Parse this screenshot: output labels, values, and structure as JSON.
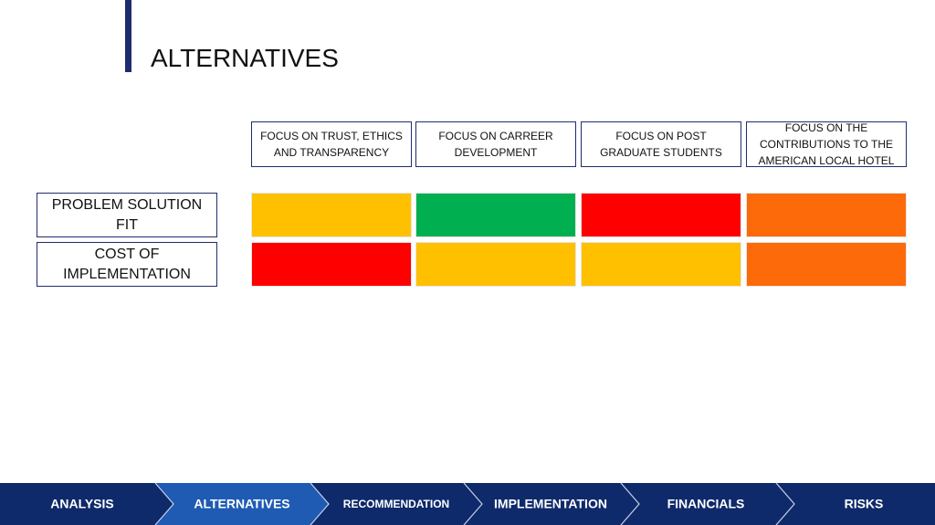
{
  "title": "ALTERNATIVES",
  "matrix": {
    "columns": [
      "FOCUS ON TRUST, ETHICS AND TRANSPARENCY",
      "FOCUS ON CARREER DEVELOPMENT",
      "FOCUS ON POST GRADUATE STUDENTS",
      "FOCUS ON THE CONTRIBUTIONS TO THE AMERICAN LOCAL HOTEL"
    ],
    "rows": [
      {
        "label": "PROBLEM SOLUTION FIT",
        "colors": [
          "#ffc000",
          "#00b050",
          "#ff0000",
          "#fd6a0a"
        ]
      },
      {
        "label": "COST OF IMPLEMENTATION",
        "colors": [
          "#ff0000",
          "#ffc000",
          "#ffc000",
          "#fd6a0a"
        ]
      }
    ]
  },
  "nav": [
    "ANALYSIS",
    "ALTERNATIVES",
    "RECOMMENDATION",
    "IMPLEMENTATION",
    "FINANCIALS",
    "RISKS"
  ]
}
